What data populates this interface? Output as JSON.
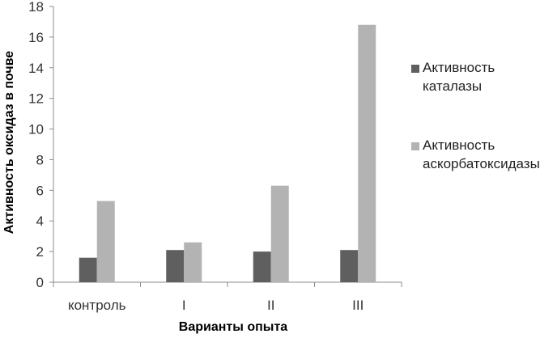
{
  "chart_data": {
    "type": "bar",
    "title": "",
    "xlabel": "Варианты опыта",
    "ylabel": "Активность оксидаз в почве",
    "categories": [
      "контроль",
      "I",
      "II",
      "III"
    ],
    "series": [
      {
        "name": "Активность каталазы",
        "values": [
          1.6,
          2.1,
          2.0,
          2.1
        ],
        "color": "#5f5f5f"
      },
      {
        "name": "Активность аскорбатоксидазы",
        "values": [
          5.3,
          2.6,
          6.3,
          16.8
        ],
        "color": "#b3b3b3"
      }
    ],
    "ylim": [
      0,
      18
    ],
    "yticks": [
      0,
      2,
      4,
      6,
      8,
      10,
      12,
      14,
      16,
      18
    ],
    "grid": false,
    "legend": "right"
  }
}
